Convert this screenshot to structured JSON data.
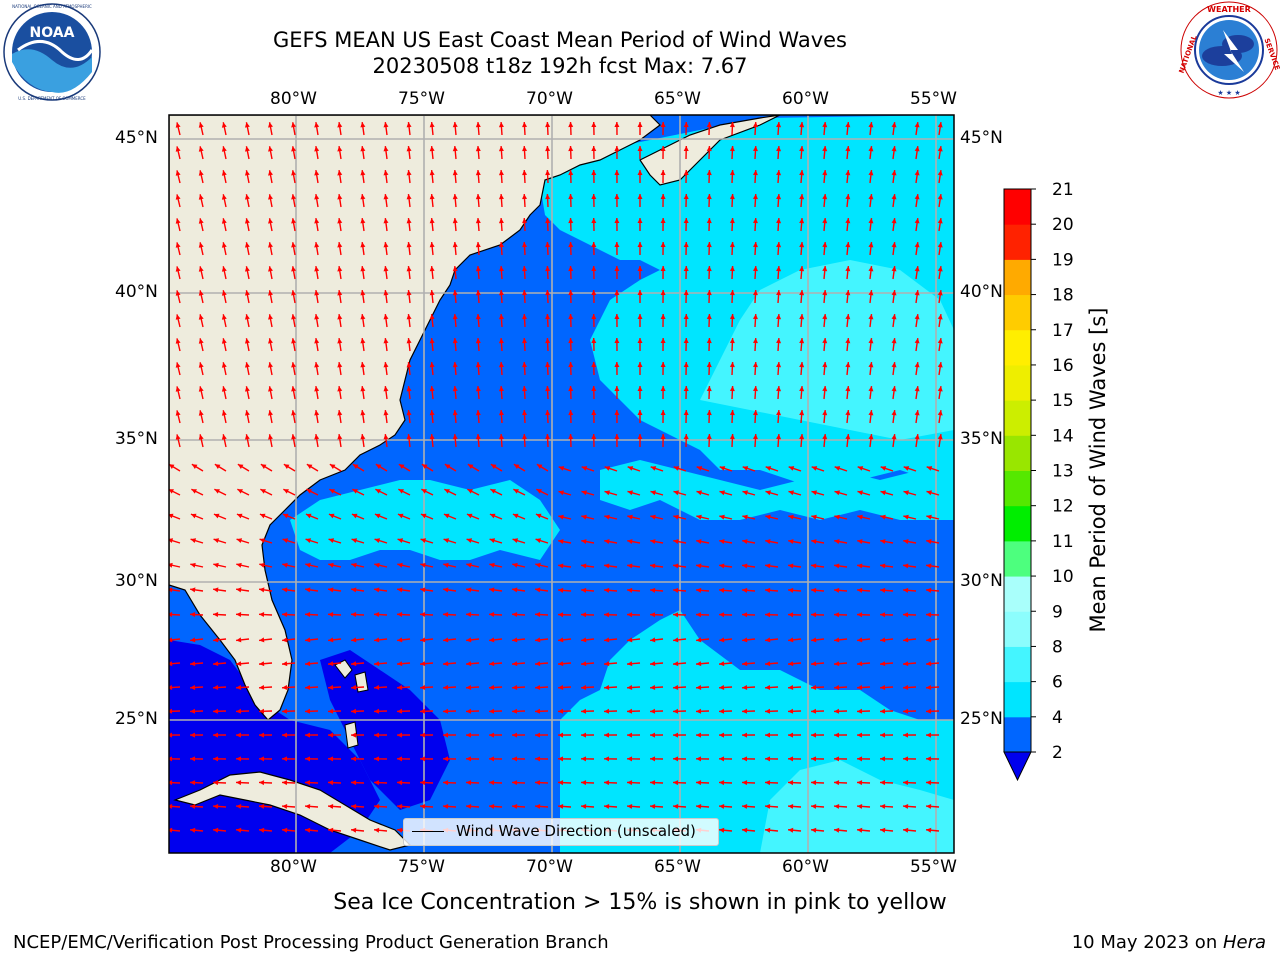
{
  "title_line1": "GEFS MEAN US East Coast Mean Period of Wind Waves",
  "title_line2": "20230508 t18z 192h fcst   Max: 7.67",
  "logos": {
    "left": {
      "icon": "noaa-logo",
      "text": "NOAA",
      "ring_text": "NATIONAL OCEANIC AND ATMOSPHERIC ADMINISTRATION · U.S. DEPARTMENT OF COMMERCE"
    },
    "right": {
      "icon": "nws-logo",
      "ring_text": "NATIONAL WEATHER SERVICE"
    }
  },
  "map": {
    "projection": "plate-carree",
    "lon_range": [
      -85,
      -54.2
    ],
    "lat_range": [
      20.5,
      46.3
    ],
    "lon_ticks": [
      "80°W",
      "75°W",
      "70°W",
      "65°W",
      "60°W",
      "55°W"
    ],
    "lat_ticks": [
      "45°N",
      "40°N",
      "35°N",
      "30°N",
      "25°N"
    ],
    "gridlines": true,
    "land_color": "#eeecdd",
    "arrow_color": "#ff0000",
    "legend_label": "Wind Wave Direction (unscaled)"
  },
  "colorbar": {
    "label": "Mean Period of Wind Waves [s]",
    "ticks": [
      "2",
      "4",
      "6",
      "8",
      "9",
      "10",
      "11",
      "12",
      "13",
      "14",
      "15",
      "16",
      "17",
      "18",
      "19",
      "20",
      "21"
    ],
    "colors": [
      "#0066ff",
      "#00e5ff",
      "#44f5ff",
      "#8cfdfd",
      "#a9fffb",
      "#4dff7e",
      "#00ee00",
      "#55e800",
      "#99e600",
      "#ccee00",
      "#eeee00",
      "#ffee00",
      "#ffcc00",
      "#ffaa00",
      "#ff8800",
      "#ff5500",
      "#ff2200",
      "#ff0000"
    ],
    "extend": "min",
    "under_color": "#0000ee"
  },
  "footnote": "Sea Ice Concentration > 15% is shown in pink to yellow",
  "credit": "NCEP/EMC/Verification Post Processing Product Generation Branch",
  "date_prefix": "10 May 2023 on ",
  "date_machine": "Hera"
}
